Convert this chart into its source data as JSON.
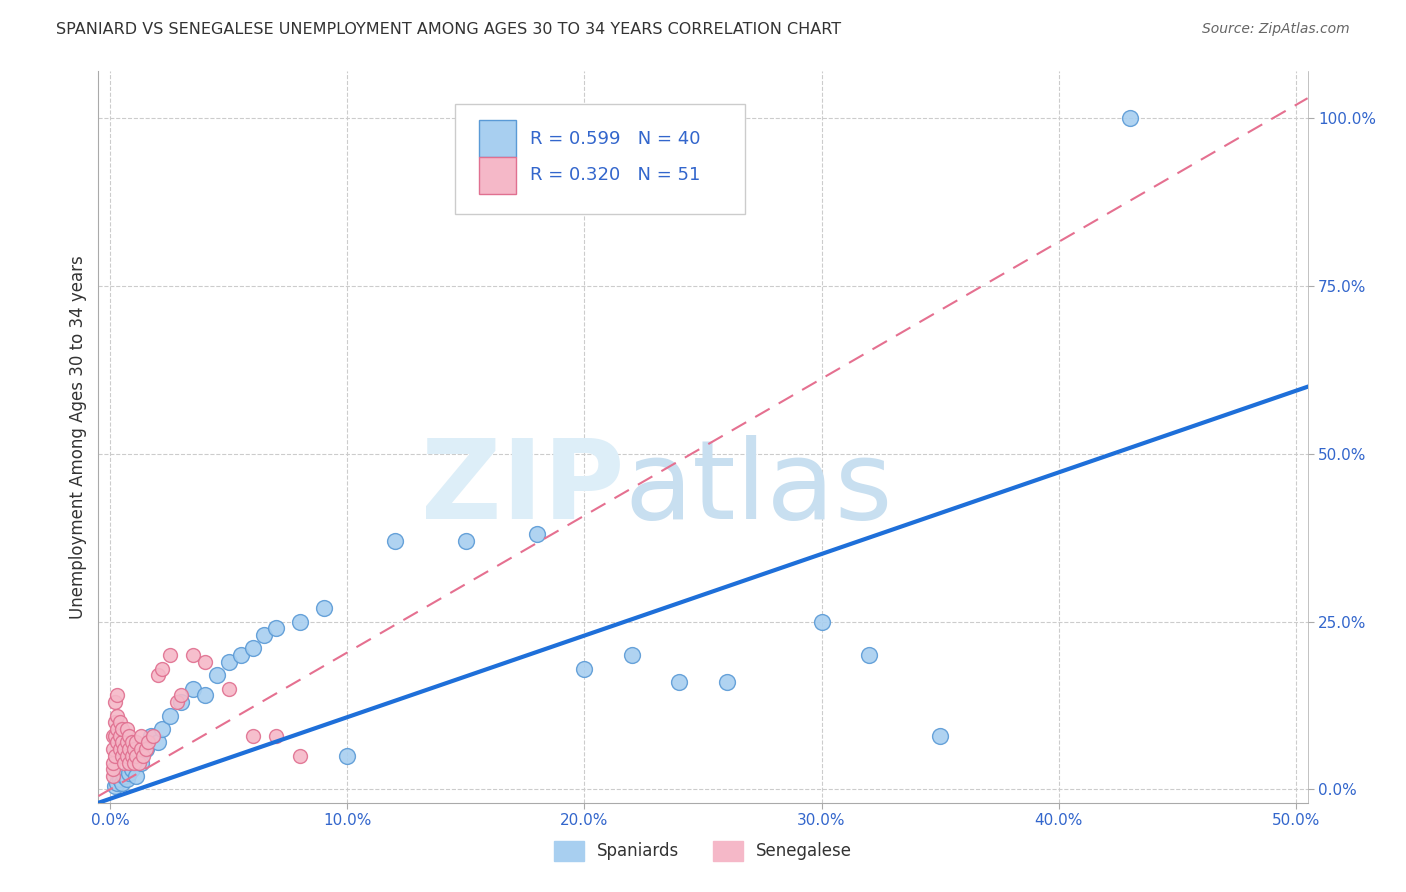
{
  "title": "SPANIARD VS SENEGALESE UNEMPLOYMENT AMONG AGES 30 TO 34 YEARS CORRELATION CHART",
  "source": "Source: ZipAtlas.com",
  "ylabel": "Unemployment Among Ages 30 to 34 years",
  "xlim": [
    -0.005,
    0.505
  ],
  "ylim": [
    -0.02,
    1.07
  ],
  "xticks": [
    0.0,
    0.1,
    0.2,
    0.3,
    0.4,
    0.5
  ],
  "xtick_labels": [
    "0.0%",
    "10.0%",
    "20.0%",
    "30.0%",
    "40.0%",
    "50.0%"
  ],
  "yticks": [
    0.0,
    0.25,
    0.5,
    0.75,
    1.0
  ],
  "ytick_labels": [
    "0.0%",
    "25.0%",
    "50.0%",
    "75.0%",
    "100.0%"
  ],
  "spaniards_color": "#A8CFF0",
  "senegalese_color": "#F5B8C8",
  "spaniards_edge": "#5A9AD6",
  "senegalese_edge": "#E07090",
  "blue_line_color": "#1E6FD9",
  "pink_line_color": "#E57090",
  "grid_color": "#CCCCCC",
  "watermark_zip_color": "#DDEEF8",
  "watermark_atlas_color": "#C8DFF0",
  "R_spaniards": 0.599,
  "N_spaniards": 40,
  "R_senegalese": 0.32,
  "N_senegalese": 51,
  "spaniards_x": [
    0.002,
    0.003,
    0.004,
    0.005,
    0.006,
    0.007,
    0.008,
    0.009,
    0.01,
    0.011,
    0.012,
    0.013,
    0.015,
    0.017,
    0.02,
    0.022,
    0.025,
    0.03,
    0.035,
    0.04,
    0.045,
    0.05,
    0.055,
    0.06,
    0.065,
    0.07,
    0.08,
    0.09,
    0.1,
    0.12,
    0.15,
    0.18,
    0.2,
    0.22,
    0.24,
    0.26,
    0.3,
    0.32,
    0.35,
    0.43
  ],
  "spaniards_y": [
    0.005,
    0.01,
    0.015,
    0.01,
    0.02,
    0.015,
    0.025,
    0.03,
    0.04,
    0.02,
    0.05,
    0.04,
    0.06,
    0.08,
    0.07,
    0.09,
    0.11,
    0.13,
    0.15,
    0.14,
    0.17,
    0.19,
    0.2,
    0.21,
    0.23,
    0.24,
    0.25,
    0.27,
    0.05,
    0.37,
    0.37,
    0.38,
    0.18,
    0.2,
    0.16,
    0.16,
    0.25,
    0.2,
    0.08,
    1.0
  ],
  "senegalese_x": [
    0.001,
    0.001,
    0.001,
    0.001,
    0.001,
    0.002,
    0.002,
    0.002,
    0.002,
    0.003,
    0.003,
    0.003,
    0.003,
    0.004,
    0.004,
    0.004,
    0.005,
    0.005,
    0.005,
    0.006,
    0.006,
    0.007,
    0.007,
    0.007,
    0.008,
    0.008,
    0.008,
    0.009,
    0.009,
    0.01,
    0.01,
    0.011,
    0.011,
    0.012,
    0.013,
    0.013,
    0.014,
    0.015,
    0.016,
    0.018,
    0.02,
    0.022,
    0.025,
    0.028,
    0.03,
    0.035,
    0.04,
    0.05,
    0.06,
    0.07,
    0.08
  ],
  "senegalese_y": [
    0.02,
    0.03,
    0.04,
    0.06,
    0.08,
    0.05,
    0.08,
    0.1,
    0.13,
    0.07,
    0.09,
    0.11,
    0.14,
    0.06,
    0.08,
    0.1,
    0.05,
    0.07,
    0.09,
    0.04,
    0.06,
    0.05,
    0.07,
    0.09,
    0.04,
    0.06,
    0.08,
    0.05,
    0.07,
    0.04,
    0.06,
    0.05,
    0.07,
    0.04,
    0.06,
    0.08,
    0.05,
    0.06,
    0.07,
    0.08,
    0.17,
    0.18,
    0.2,
    0.13,
    0.14,
    0.2,
    0.19,
    0.15,
    0.08,
    0.08,
    0.05
  ],
  "blue_line_x0": -0.005,
  "blue_line_x1": 0.505,
  "blue_line_y0": -0.02,
  "blue_line_y1": 0.6,
  "pink_line_x0": -0.005,
  "pink_line_x1": 0.505,
  "pink_line_y0": -0.01,
  "pink_line_y1": 1.03
}
